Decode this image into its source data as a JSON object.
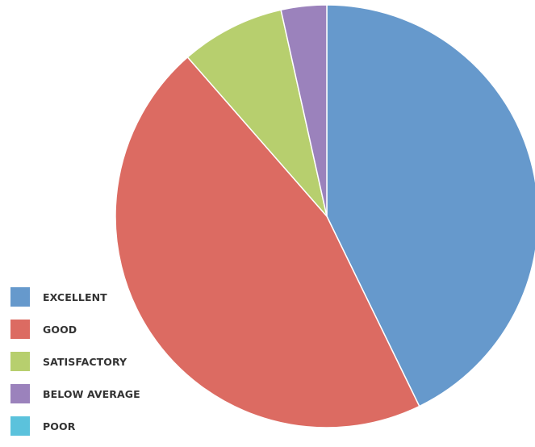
{
  "chart_data": {
    "type": "pie",
    "title": "",
    "categories": [
      "EXCELLENT",
      "GOOD",
      "SATISFACTORY",
      "BELOW AVERAGE",
      "POOR"
    ],
    "values": [
      43,
      46,
      8,
      3.5,
      0
    ],
    "unit": "percent (estimated)",
    "colors": [
      "#6699CC",
      "#DC6B62",
      "#B7CF6E",
      "#9B82BC",
      "#5BC2DC"
    ],
    "start_angle_deg": 0,
    "direction": "clockwise",
    "legend_position": "bottom-left"
  }
}
